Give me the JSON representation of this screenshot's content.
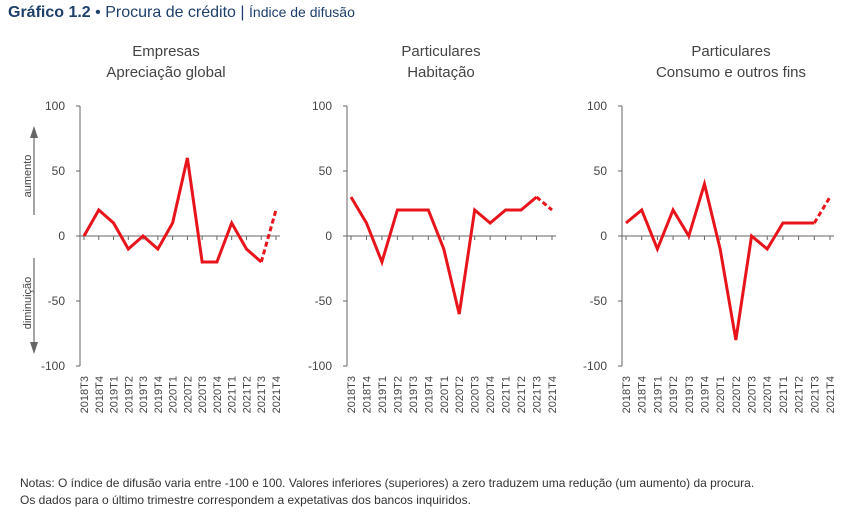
{
  "header": {
    "chart_number": "Gráfico 1.2",
    "bullet": "•",
    "title": "Procura de crédito",
    "separator": "|",
    "measure": "Índice de difusão"
  },
  "notes": {
    "line1": "Notas: O índice de difusão varia entre -100 e 100. Valores inferiores (superiores) a zero traduzem uma redução (um aumento) da procura.",
    "line2": "Os dados para o último trimestre correspondem a expetativas dos bancos inquiridos."
  },
  "colors": {
    "series": "#e8141b",
    "axis": "#666666",
    "text": "#444444",
    "header": "#1f3f6b"
  },
  "chart_data": [
    {
      "type": "line",
      "title": "Empresas",
      "subtitle": "Apreciação global",
      "categories": [
        "2018T3",
        "2018T4",
        "2019T1",
        "2019T2",
        "2019T3",
        "2019T4",
        "2020T1",
        "2020T2",
        "2020T3",
        "2020T4",
        "2021T1",
        "2021T2",
        "2021T3",
        "2021T4"
      ],
      "values": [
        0,
        20,
        10,
        -10,
        0,
        -10,
        10,
        60,
        -20,
        -20,
        10,
        -10,
        -20,
        20
      ],
      "expected_from_index": 12,
      "ylim": [
        -100,
        100
      ],
      "yticks": [
        100,
        50,
        0,
        -50,
        -100
      ],
      "ytick_labels": [
        "100",
        "50",
        "0",
        "-50",
        "-100"
      ],
      "side_labels": {
        "up": "aumento",
        "down": "diminuição"
      }
    },
    {
      "type": "line",
      "title": "Particulares",
      "subtitle": "Habitação",
      "categories": [
        "2018T3",
        "2018T4",
        "2019T1",
        "2019T2",
        "2019T3",
        "2019T4",
        "2020T1",
        "2020T2",
        "2020T3",
        "2020T4",
        "2021T1",
        "2021T2",
        "2021T3",
        "2021T4"
      ],
      "values": [
        30,
        10,
        -20,
        20,
        20,
        20,
        -10,
        -60,
        20,
        10,
        20,
        20,
        30,
        20
      ],
      "expected_from_index": 12,
      "ylim": [
        -100,
        100
      ],
      "yticks": [
        100,
        50,
        0,
        -50,
        -100
      ],
      "ytick_labels": [
        "100",
        "50",
        "0",
        "-50",
        "-100"
      ]
    },
    {
      "type": "line",
      "title": "Particulares",
      "subtitle": "Consumo e outros fins",
      "categories": [
        "2018T3",
        "2018T4",
        "2019T1",
        "2019T2",
        "2019T3",
        "2019T4",
        "2020T1",
        "2020T2",
        "2020T3",
        "2020T4",
        "2021T1",
        "2021T2",
        "2021T3",
        "2021T4"
      ],
      "values": [
        10,
        20,
        -10,
        20,
        0,
        40,
        -10,
        -80,
        0,
        -10,
        10,
        10,
        10,
        30
      ],
      "expected_from_index": 12,
      "ylim": [
        -100,
        100
      ],
      "yticks": [
        100,
        50,
        0,
        -50,
        -100
      ],
      "ytick_labels": [
        "100",
        "50",
        "0",
        "-50",
        "-100"
      ]
    }
  ]
}
